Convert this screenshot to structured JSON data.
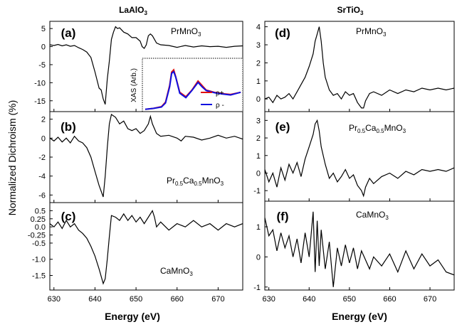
{
  "columns": [
    {
      "title": "LaAlO",
      "title_sub": "3"
    },
    {
      "title": "SrTiO",
      "title_sub": "3"
    }
  ],
  "y_axis_label": "Normalized Dichroism (%)",
  "x_axis_label": "Energy (eV)",
  "line_color": "#000000",
  "chart_data": [
    {
      "panel": "(a)",
      "type": "line",
      "material": "PrMnO",
      "material_sub": "3",
      "xlim": [
        629,
        676
      ],
      "ylim": [
        -18,
        7
      ],
      "xticks": [
        "630",
        "640",
        "650",
        "660",
        "670"
      ],
      "show_xticks": false,
      "yticks": [
        5,
        0,
        -5,
        -10,
        -15
      ],
      "ytick_labels": [
        "5",
        "0",
        "-5",
        "-10",
        "-15"
      ],
      "points": [
        [
          629,
          0.5
        ],
        [
          630,
          0.3
        ],
        [
          631,
          0.6
        ],
        [
          632,
          0.2
        ],
        [
          633,
          0.5
        ],
        [
          634,
          0.1
        ],
        [
          635,
          0.3
        ],
        [
          636,
          -0.3
        ],
        [
          637,
          -0.8
        ],
        [
          638,
          -1.5
        ],
        [
          639,
          -3
        ],
        [
          640,
          -7
        ],
        [
          641,
          -11.5
        ],
        [
          641.5,
          -12
        ],
        [
          642,
          -14.5
        ],
        [
          642.5,
          -16
        ],
        [
          643,
          -9
        ],
        [
          643.5,
          -4
        ],
        [
          644,
          2
        ],
        [
          644.5,
          4
        ],
        [
          645,
          5.5
        ],
        [
          645.5,
          5
        ],
        [
          646,
          5.2
        ],
        [
          647,
          4
        ],
        [
          648,
          3.5
        ],
        [
          649,
          2.5
        ],
        [
          650,
          2.5
        ],
        [
          651,
          1.5
        ],
        [
          651.5,
          0
        ],
        [
          652,
          -0.5
        ],
        [
          652.5,
          0.5
        ],
        [
          653,
          3
        ],
        [
          653.5,
          3.5
        ],
        [
          654,
          3
        ],
        [
          655,
          1
        ],
        [
          656,
          0.5
        ],
        [
          658,
          0.3
        ],
        [
          660,
          -0.2
        ],
        [
          662,
          0.3
        ],
        [
          664,
          -0.1
        ],
        [
          666,
          0.2
        ],
        [
          668,
          0
        ],
        [
          670,
          0.1
        ],
        [
          672,
          -0.2
        ],
        [
          674,
          0.1
        ],
        [
          676,
          0.2
        ]
      ],
      "inset": {
        "ylabel": "XAS (Arb.)",
        "series": [
          {
            "name": "ρ+",
            "color": "#e01010",
            "points": [
              [
                652,
                0.02
              ],
              [
                654,
                0.04
              ],
              [
                656,
                0.08
              ],
              [
                657,
                0.18
              ],
              [
                658,
                0.55
              ],
              [
                658.5,
                0.85
              ],
              [
                659,
                0.9
              ],
              [
                659.5,
                0.75
              ],
              [
                660.5,
                0.4
              ],
              [
                662,
                0.3
              ],
              [
                663.5,
                0.45
              ],
              [
                665,
                0.65
              ],
              [
                666,
                0.55
              ],
              [
                667,
                0.45
              ],
              [
                669,
                0.4
              ],
              [
                671,
                0.37
              ],
              [
                673,
                0.35
              ],
              [
                675.5,
                0.4
              ]
            ]
          },
          {
            "name": "ρ -",
            "color": "#1010e0",
            "points": [
              [
                652,
                0.02
              ],
              [
                654,
                0.04
              ],
              [
                656,
                0.07
              ],
              [
                657,
                0.16
              ],
              [
                658,
                0.52
              ],
              [
                658.5,
                0.82
              ],
              [
                659,
                0.86
              ],
              [
                659.5,
                0.74
              ],
              [
                660.5,
                0.38
              ],
              [
                662,
                0.28
              ],
              [
                663.5,
                0.44
              ],
              [
                665,
                0.62
              ],
              [
                666,
                0.52
              ],
              [
                667,
                0.44
              ],
              [
                669,
                0.39
              ],
              [
                671,
                0.36
              ],
              [
                673,
                0.34
              ],
              [
                675.5,
                0.4
              ]
            ]
          }
        ]
      }
    },
    {
      "panel": "(b)",
      "type": "line",
      "material": "Pr",
      "material_parts": [
        "Pr",
        "0.5",
        "Ca",
        "0.5",
        "MnO",
        "3"
      ],
      "xlim": [
        629,
        676
      ],
      "ylim": [
        -6.8,
        2.8
      ],
      "xticks": [
        "630",
        "640",
        "650",
        "660",
        "670"
      ],
      "show_xticks": false,
      "yticks": [
        2,
        0,
        -2,
        -4,
        -6
      ],
      "ytick_labels": [
        "2",
        "0",
        "-2",
        "-4",
        "-6"
      ],
      "points": [
        [
          629,
          0
        ],
        [
          630,
          -0.3
        ],
        [
          631,
          0.1
        ],
        [
          632,
          -0.4
        ],
        [
          633,
          0
        ],
        [
          634,
          -0.5
        ],
        [
          635,
          0.2
        ],
        [
          636,
          -0.3
        ],
        [
          637,
          -0.5
        ],
        [
          638,
          -1
        ],
        [
          639,
          -2
        ],
        [
          640,
          -3.5
        ],
        [
          641,
          -5
        ],
        [
          642,
          -6.2
        ],
        [
          642.5,
          -4
        ],
        [
          643,
          -1
        ],
        [
          643.5,
          1.5
        ],
        [
          644,
          2.5
        ],
        [
          645,
          2.2
        ],
        [
          646,
          1.5
        ],
        [
          647,
          1.8
        ],
        [
          648,
          1
        ],
        [
          649,
          0.8
        ],
        [
          650,
          1
        ],
        [
          651,
          0.5
        ],
        [
          652,
          0.8
        ],
        [
          653,
          1.5
        ],
        [
          653.5,
          2.3
        ],
        [
          654,
          1.5
        ],
        [
          655,
          0.5
        ],
        [
          656,
          0.2
        ],
        [
          658,
          0.3
        ],
        [
          660,
          0
        ],
        [
          661,
          -0.3
        ],
        [
          662,
          0.2
        ],
        [
          664,
          0.1
        ],
        [
          666,
          -0.2
        ],
        [
          668,
          0
        ],
        [
          670,
          0.3
        ],
        [
          672,
          0
        ],
        [
          674,
          0.2
        ],
        [
          676,
          -0.1
        ]
      ]
    },
    {
      "panel": "(c)",
      "type": "line",
      "material": "CaMnO",
      "material_sub": "3",
      "xlim": [
        629,
        676
      ],
      "ylim": [
        -1.95,
        0.75
      ],
      "xticks": [
        "630",
        "640",
        "650",
        "660",
        "670"
      ],
      "show_xticks": true,
      "yticks": [
        0.5,
        0.25,
        0,
        -0.25,
        -0.5,
        -1.0,
        -1.5
      ],
      "ytick_labels": [
        "0.5",
        "0.25",
        "0.0",
        "-0.25",
        "-0.5",
        "-1.0",
        "-1.5"
      ],
      "points": [
        [
          629,
          0.1
        ],
        [
          630,
          0
        ],
        [
          631,
          0.15
        ],
        [
          632,
          -0.05
        ],
        [
          633,
          0.2
        ],
        [
          634,
          0
        ],
        [
          635,
          0.1
        ],
        [
          636,
          -0.1
        ],
        [
          637,
          -0.2
        ],
        [
          638,
          -0.35
        ],
        [
          639,
          -0.6
        ],
        [
          640,
          -0.9
        ],
        [
          641,
          -1.3
        ],
        [
          642,
          -1.75
        ],
        [
          642.5,
          -1.6
        ],
        [
          643,
          -1
        ],
        [
          643.5,
          -0.3
        ],
        [
          644,
          0.35
        ],
        [
          645,
          0.3
        ],
        [
          646,
          0.2
        ],
        [
          647,
          0.4
        ],
        [
          648,
          0.2
        ],
        [
          649,
          0.35
        ],
        [
          650,
          0.15
        ],
        [
          651,
          0.3
        ],
        [
          652,
          0.1
        ],
        [
          653,
          0.3
        ],
        [
          654,
          0.5
        ],
        [
          654.5,
          0.3
        ],
        [
          655,
          0
        ],
        [
          656,
          0.15
        ],
        [
          658,
          -0.1
        ],
        [
          660,
          0.1
        ],
        [
          662,
          0
        ],
        [
          664,
          0.2
        ],
        [
          666,
          0
        ],
        [
          668,
          0.1
        ],
        [
          670,
          -0.1
        ],
        [
          672,
          0.1
        ],
        [
          674,
          0
        ],
        [
          676,
          0.1
        ]
      ]
    },
    {
      "panel": "(d)",
      "type": "line",
      "material": "PrMnO",
      "material_sub": "3",
      "xlim": [
        629,
        676
      ],
      "ylim": [
        -0.7,
        4.3
      ],
      "xticks": [
        "630",
        "640",
        "650",
        "660",
        "670"
      ],
      "show_xticks": false,
      "yticks": [
        4,
        3,
        2,
        1,
        0
      ],
      "ytick_labels": [
        "4",
        "3",
        "2",
        "1",
        "0"
      ],
      "points": [
        [
          629,
          0
        ],
        [
          630,
          0.1
        ],
        [
          631,
          -0.2
        ],
        [
          632,
          0.2
        ],
        [
          633,
          0
        ],
        [
          634,
          0.1
        ],
        [
          635,
          0.3
        ],
        [
          636,
          0
        ],
        [
          637,
          0.4
        ],
        [
          638,
          0.8
        ],
        [
          639,
          1.2
        ],
        [
          640,
          1.8
        ],
        [
          641,
          2.5
        ],
        [
          641.5,
          3.2
        ],
        [
          642,
          3.6
        ],
        [
          642.5,
          4
        ],
        [
          643,
          3.2
        ],
        [
          643.5,
          2
        ],
        [
          644,
          1.2
        ],
        [
          645,
          0.5
        ],
        [
          646,
          0.2
        ],
        [
          647,
          0.3
        ],
        [
          648,
          0
        ],
        [
          649,
          0.4
        ],
        [
          650,
          0.2
        ],
        [
          651,
          0.3
        ],
        [
          652,
          -0.2
        ],
        [
          653,
          -0.5
        ],
        [
          653.5,
          -0.5
        ],
        [
          654,
          -0.1
        ],
        [
          655,
          0.3
        ],
        [
          656,
          0.4
        ],
        [
          658,
          0.2
        ],
        [
          660,
          0.5
        ],
        [
          662,
          0.3
        ],
        [
          664,
          0.5
        ],
        [
          666,
          0.4
        ],
        [
          668,
          0.6
        ],
        [
          670,
          0.5
        ],
        [
          672,
          0.6
        ],
        [
          674,
          0.5
        ],
        [
          676,
          0.6
        ]
      ]
    },
    {
      "panel": "(e)",
      "type": "line",
      "material": "Pr",
      "material_parts": [
        "Pr",
        "0.5",
        "Ca",
        "0.5",
        "MnO",
        "3"
      ],
      "xlim": [
        629,
        676
      ],
      "ylim": [
        -1.6,
        3.5
      ],
      "xticks": [
        "630",
        "640",
        "650",
        "660",
        "670"
      ],
      "show_xticks": false,
      "yticks": [
        3,
        2,
        1,
        0,
        -1
      ],
      "ytick_labels": [
        "3",
        "2",
        "1",
        "0",
        "-1"
      ],
      "points": [
        [
          629,
          0.2
        ],
        [
          630,
          -0.5
        ],
        [
          631,
          0
        ],
        [
          632,
          -0.8
        ],
        [
          633,
          0.3
        ],
        [
          634,
          -0.4
        ],
        [
          635,
          0.5
        ],
        [
          636,
          0
        ],
        [
          637,
          0.6
        ],
        [
          638,
          -0.2
        ],
        [
          639,
          0.8
        ],
        [
          640,
          1.5
        ],
        [
          641,
          2.2
        ],
        [
          641.5,
          2.8
        ],
        [
          642,
          3
        ],
        [
          642.5,
          2.4
        ],
        [
          643,
          1.5
        ],
        [
          644,
          0.5
        ],
        [
          645,
          -0.3
        ],
        [
          646,
          0
        ],
        [
          647,
          -0.5
        ],
        [
          648,
          -0.2
        ],
        [
          649,
          0.2
        ],
        [
          650,
          -0.3
        ],
        [
          651,
          -0.1
        ],
        [
          652,
          -0.7
        ],
        [
          653,
          -1
        ],
        [
          653.5,
          -1.3
        ],
        [
          654,
          -0.8
        ],
        [
          655,
          -0.3
        ],
        [
          656,
          -0.6
        ],
        [
          658,
          -0.2
        ],
        [
          660,
          0
        ],
        [
          662,
          -0.3
        ],
        [
          664,
          0.1
        ],
        [
          666,
          -0.1
        ],
        [
          668,
          0.2
        ],
        [
          670,
          0.1
        ],
        [
          672,
          0.2
        ],
        [
          674,
          0.1
        ],
        [
          676,
          0.3
        ]
      ]
    },
    {
      "panel": "(f)",
      "type": "line",
      "material": "CaMnO",
      "material_sub": "3",
      "xlim": [
        629,
        676
      ],
      "ylim": [
        -1.1,
        1.85
      ],
      "xticks": [
        "630",
        "640",
        "650",
        "660",
        "670"
      ],
      "show_xticks": true,
      "yticks": [
        1,
        0,
        -1
      ],
      "ytick_labels": [
        "1",
        "0",
        "-1"
      ],
      "points": [
        [
          629,
          1.3
        ],
        [
          630,
          0.7
        ],
        [
          631,
          0.9
        ],
        [
          632,
          0.2
        ],
        [
          633,
          0.8
        ],
        [
          634,
          0.3
        ],
        [
          635,
          0.7
        ],
        [
          636,
          0
        ],
        [
          637,
          0.6
        ],
        [
          638,
          -0.2
        ],
        [
          639,
          0.8
        ],
        [
          640,
          0
        ],
        [
          641,
          1.5
        ],
        [
          641.5,
          -0.5
        ],
        [
          642,
          1.2
        ],
        [
          642.5,
          -0.3
        ],
        [
          643,
          0.9
        ],
        [
          644,
          -0.4
        ],
        [
          645,
          0.5
        ],
        [
          646,
          -1
        ],
        [
          647,
          0.3
        ],
        [
          648,
          -0.3
        ],
        [
          649,
          0.4
        ],
        [
          650,
          -0.2
        ],
        [
          651,
          0.3
        ],
        [
          652,
          -0.4
        ],
        [
          653,
          0.2
        ],
        [
          654,
          -0.1
        ],
        [
          655,
          -0.4
        ],
        [
          656,
          0
        ],
        [
          658,
          -0.3
        ],
        [
          660,
          0.1
        ],
        [
          662,
          -0.5
        ],
        [
          664,
          0.2
        ],
        [
          666,
          -0.4
        ],
        [
          668,
          0.1
        ],
        [
          670,
          -0.3
        ],
        [
          672,
          -0.1
        ],
        [
          674,
          -0.5
        ],
        [
          676,
          -0.6
        ]
      ]
    }
  ]
}
